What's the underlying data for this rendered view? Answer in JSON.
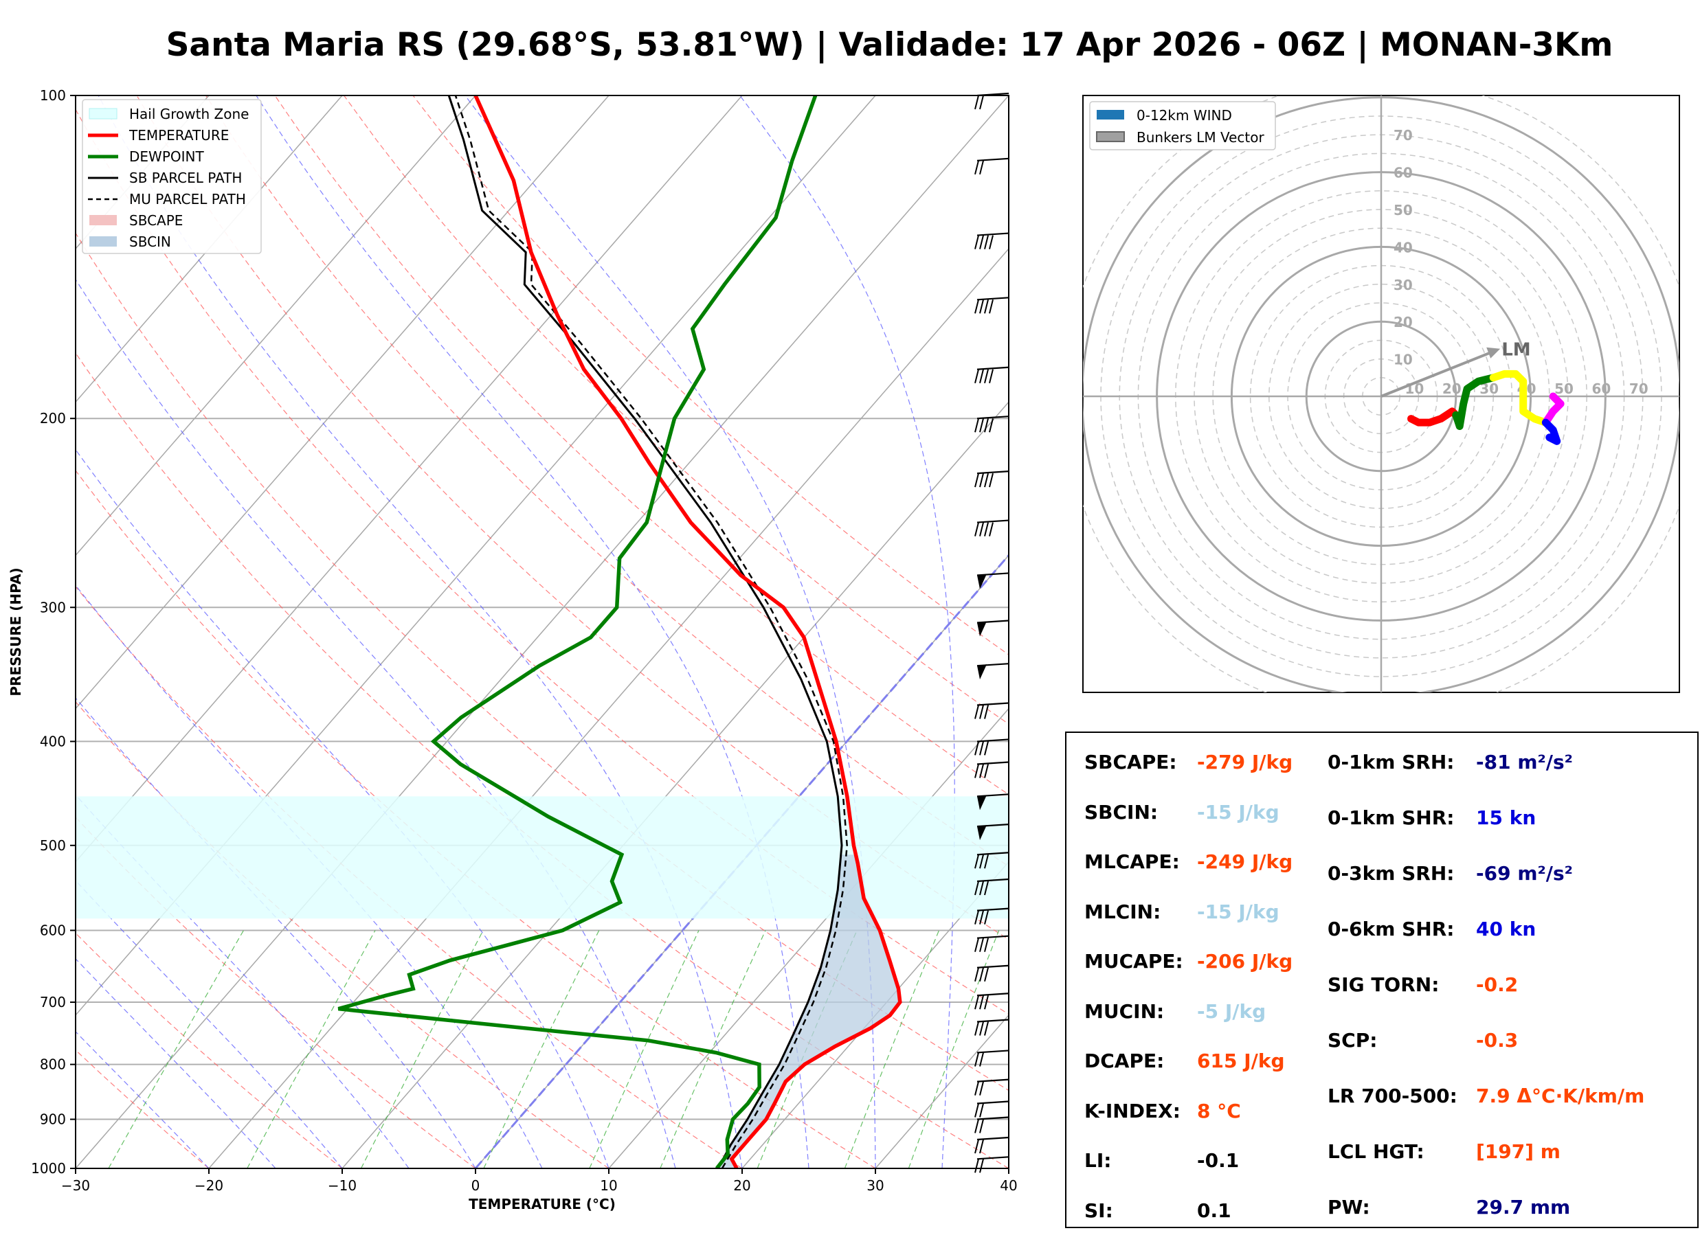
{
  "title": "Santa Maria RS (29.68°S, 53.81°W) | Validade: 17 Apr 2026 - 06Z | MONAN-3Km",
  "colors": {
    "temperature": "#ff0000",
    "dewpoint": "#008000",
    "parcel": "#000000",
    "sbcape": "#f4c2c2",
    "sbcin": "#b9cfe3",
    "hail": "#e0ffff",
    "orange": "#ff4500",
    "lightblue": "#a6d1e6",
    "navy": "#000080",
    "blue": "#0000dd"
  },
  "chart_data": [
    {
      "type": "line",
      "subtype": "skew-T log-P",
      "xlabel": "TEMPERATURE (°C)",
      "ylabel": "PRESSURE (HPA)",
      "xlim": [
        -30,
        40
      ],
      "ylim": [
        1000,
        100
      ],
      "x_ticks": [
        "−30",
        "−20",
        "−10",
        "0",
        "10",
        "20",
        "30",
        "40"
      ],
      "x_tick_values": [
        -30,
        -20,
        -10,
        0,
        10,
        20,
        30,
        40
      ],
      "y_ticks": [
        "100",
        "200",
        "300",
        "400",
        "500",
        "600",
        "700",
        "800",
        "900",
        "1000"
      ],
      "y_tick_values": [
        100,
        200,
        300,
        400,
        500,
        600,
        700,
        800,
        900,
        1000
      ],
      "legend": [
        {
          "label": "Hail Growth Zone",
          "style": "hail"
        },
        {
          "label": "TEMPERATURE",
          "style": "temperature"
        },
        {
          "label": "DEWPOINT",
          "style": "dewpoint"
        },
        {
          "label": "SB PARCEL PATH",
          "style": "sbparcel"
        },
        {
          "label": "MU PARCEL PATH",
          "style": "muparcel"
        },
        {
          "label": "SBCAPE",
          "style": "sbcape"
        },
        {
          "label": "SBCIN",
          "style": "sbcin"
        }
      ],
      "hail_growth_zone_hpa": [
        450,
        585
      ],
      "temperature": [
        [
          1000,
          19.6
        ],
        [
          980,
          18.6
        ],
        [
          940,
          18.6
        ],
        [
          900,
          18.6
        ],
        [
          870,
          18.2
        ],
        [
          830,
          17.6
        ],
        [
          800,
          17.9
        ],
        [
          770,
          19.0
        ],
        [
          740,
          20.5
        ],
        [
          720,
          21.1
        ],
        [
          700,
          21.0
        ],
        [
          680,
          20.0
        ],
        [
          640,
          17.5
        ],
        [
          600,
          14.8
        ],
        [
          560,
          11.5
        ],
        [
          520,
          8.8
        ],
        [
          500,
          7.3
        ],
        [
          450,
          3.6
        ],
        [
          400,
          -0.8
        ],
        [
          350,
          -6.3
        ],
        [
          320,
          -10.0
        ],
        [
          300,
          -13.5
        ],
        [
          280,
          -18.8
        ],
        [
          250,
          -26.0
        ],
        [
          220,
          -33.0
        ],
        [
          200,
          -38.0
        ],
        [
          180,
          -44.0
        ],
        [
          160,
          -49.6
        ],
        [
          140,
          -55.6
        ],
        [
          120,
          -61.6
        ],
        [
          100,
          -70.0
        ]
      ],
      "dewpoint": [
        [
          1000,
          18.1
        ],
        [
          970,
          18.0
        ],
        [
          940,
          17.0
        ],
        [
          900,
          16.1
        ],
        [
          870,
          16.2
        ],
        [
          840,
          16.0
        ],
        [
          800,
          14.5
        ],
        [
          780,
          10.5
        ],
        [
          760,
          4.6
        ],
        [
          740,
          -5.5
        ],
        [
          710,
          -20.7
        ],
        [
          690,
          -18.0
        ],
        [
          680,
          -16.4
        ],
        [
          660,
          -17.6
        ],
        [
          640,
          -15.5
        ],
        [
          600,
          -9.0
        ],
        [
          565,
          -6.5
        ],
        [
          540,
          -8.5
        ],
        [
          510,
          -9.5
        ],
        [
          470,
          -17.5
        ],
        [
          420,
          -27.5
        ],
        [
          400,
          -31.0
        ],
        [
          380,
          -30.5
        ],
        [
          340,
          -28.0
        ],
        [
          320,
          -26.0
        ],
        [
          300,
          -26.0
        ],
        [
          270,
          -29.0
        ],
        [
          250,
          -29.3
        ],
        [
          220,
          -32.0
        ],
        [
          200,
          -34.0
        ],
        [
          180,
          -35.0
        ],
        [
          165,
          -38.5
        ],
        [
          150,
          -39.0
        ],
        [
          130,
          -39.5
        ],
        [
          115,
          -42.0
        ],
        [
          100,
          -44.5
        ]
      ],
      "sb_parcel": [
        [
          1000,
          18.2
        ],
        [
          950,
          17.6
        ],
        [
          900,
          17.2
        ],
        [
          850,
          16.6
        ],
        [
          800,
          16.0
        ],
        [
          750,
          15.1
        ],
        [
          700,
          14.1
        ],
        [
          650,
          12.8
        ],
        [
          600,
          11.1
        ],
        [
          550,
          9.0
        ],
        [
          500,
          6.4
        ],
        [
          450,
          2.9
        ],
        [
          400,
          -1.5
        ],
        [
          350,
          -7.5
        ],
        [
          300,
          -15.0
        ],
        [
          250,
          -24.5
        ],
        [
          200,
          -37.0
        ],
        [
          170,
          -46.5
        ],
        [
          150,
          -54.0
        ],
        [
          140,
          -56.0
        ],
        [
          128,
          -62.0
        ],
        [
          110,
          -68.0
        ],
        [
          100,
          -72.0
        ]
      ],
      "mu_parcel": [
        [
          1000,
          18.5
        ],
        [
          950,
          18.0
        ],
        [
          900,
          17.6
        ],
        [
          850,
          17.0
        ],
        [
          800,
          16.4
        ],
        [
          750,
          15.5
        ],
        [
          700,
          14.5
        ],
        [
          650,
          13.2
        ],
        [
          600,
          11.5
        ],
        [
          550,
          9.4
        ],
        [
          500,
          6.8
        ],
        [
          450,
          3.3
        ],
        [
          400,
          -1.0
        ],
        [
          350,
          -7.0
        ],
        [
          300,
          -14.5
        ],
        [
          250,
          -24.0
        ],
        [
          200,
          -36.5
        ],
        [
          170,
          -46.0
        ],
        [
          150,
          -53.5
        ],
        [
          140,
          -55.5
        ],
        [
          128,
          -61.5
        ],
        [
          110,
          -67.5
        ],
        [
          100,
          -71.5
        ]
      ],
      "wind_barbs_hpa": [
        100,
        115,
        135,
        155,
        180,
        200,
        225,
        250,
        280,
        310,
        340,
        370,
        400,
        420,
        450,
        480,
        510,
        540,
        575,
        610,
        650,
        690,
        730,
        780,
        830,
        870,
        900,
        940,
        980
      ]
    },
    {
      "type": "line",
      "subtype": "hodograph",
      "ring_labels": [
        "10",
        "20",
        "30",
        "40",
        "50",
        "60",
        "70"
      ],
      "ring_values": [
        10,
        20,
        30,
        40,
        50,
        60,
        70
      ],
      "legend": [
        {
          "label": "0-12km WIND",
          "style": "wind"
        },
        {
          "label": "Bunkers LM Vector",
          "style": "lm"
        }
      ],
      "lm_label": "LM",
      "lm_vector": [
        30,
        12
      ],
      "segments": [
        {
          "color": "#ff0000",
          "points": [
            [
              8,
              -6
            ],
            [
              10,
              -7
            ],
            [
              13,
              -7
            ],
            [
              16,
              -6
            ],
            [
              19,
              -4
            ],
            [
              20,
              -5
            ]
          ]
        },
        {
          "color": "#008000",
          "points": [
            [
              20,
              -5
            ],
            [
              21,
              -8
            ],
            [
              22,
              -2
            ],
            [
              23,
              2
            ],
            [
              26,
              4
            ],
            [
              30,
              5
            ]
          ]
        },
        {
          "color": "#ffff00",
          "points": [
            [
              30,
              5
            ],
            [
              33,
              6
            ],
            [
              36,
              6
            ],
            [
              38,
              4
            ],
            [
              38,
              0
            ],
            [
              38,
              -4
            ],
            [
              41,
              -6
            ],
            [
              44,
              -7
            ]
          ]
        },
        {
          "color": "#ff00ff",
          "points": [
            [
              44,
              -7
            ],
            [
              46,
              -4
            ],
            [
              48,
              -2
            ],
            [
              46,
              0
            ]
          ]
        },
        {
          "color": "#0000ff",
          "points": [
            [
              44,
              -7
            ],
            [
              46,
              -9
            ],
            [
              47,
              -12
            ],
            [
              45,
              -11
            ]
          ]
        }
      ]
    }
  ],
  "indices": {
    "left": [
      {
        "label": "SBCAPE:",
        "value": "-279 J/kg",
        "color": "orange"
      },
      {
        "label": "SBCIN:",
        "value": "-15 J/kg",
        "color": "lightblue"
      },
      {
        "label": "MLCAPE:",
        "value": "-249 J/kg",
        "color": "orange"
      },
      {
        "label": "MLCIN:",
        "value": "-15 J/kg",
        "color": "lightblue"
      },
      {
        "label": "MUCAPE:",
        "value": "-206 J/kg",
        "color": "orange"
      },
      {
        "label": "MUCIN:",
        "value": "-5 J/kg",
        "color": "lightblue"
      },
      {
        "label": "DCAPE:",
        "value": "615 J/kg",
        "color": "orange"
      },
      {
        "label": "K-INDEX:",
        "value": "8 °C",
        "color": "orange"
      },
      {
        "label": "LI:",
        "value": "-0.1",
        "color": "black"
      },
      {
        "label": "SI:",
        "value": "0.1",
        "color": "black"
      }
    ],
    "right": [
      {
        "label": "0-1km SRH:",
        "value": "-81 m²/s²",
        "color": "navy"
      },
      {
        "label": "0-1km SHR:",
        "value": "15 kn",
        "color": "blue"
      },
      {
        "label": "0-3km SRH:",
        "value": "-69 m²/s²",
        "color": "navy"
      },
      {
        "label": "0-6km SHR:",
        "value": "40 kn",
        "color": "blue"
      },
      {
        "label": "SIG TORN:",
        "value": "-0.2",
        "color": "orange"
      },
      {
        "label": "SCP:",
        "value": "-0.3",
        "color": "orange"
      },
      {
        "label": "LR 700-500:",
        "value": "7.9 Δ°C·K/km/m",
        "color": "orange"
      },
      {
        "label": "LCL HGT:",
        "value": "[197] m",
        "color": "orange"
      },
      {
        "label": "PW:",
        "value": "29.7 mm",
        "color": "navy"
      }
    ]
  }
}
